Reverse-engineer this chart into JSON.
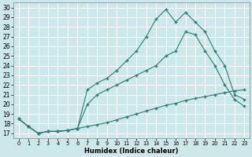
{
  "xlabel": "Humidex (Indice chaleur)",
  "bg_color": "#cce8ea",
  "grid_color": "#ffffff",
  "line_color": "#2e7d72",
  "xlim": [
    -0.5,
    23.5
  ],
  "ylim": [
    16.5,
    30.5
  ],
  "xticks": [
    0,
    1,
    2,
    3,
    4,
    5,
    6,
    7,
    8,
    9,
    10,
    11,
    12,
    13,
    14,
    15,
    16,
    17,
    18,
    19,
    20,
    21,
    22,
    23
  ],
  "yticks": [
    17,
    18,
    19,
    20,
    21,
    22,
    23,
    24,
    25,
    26,
    27,
    28,
    29,
    30
  ],
  "line1_x": [
    0,
    1,
    2,
    3,
    4,
    5,
    6,
    7,
    8,
    9,
    10,
    11,
    12,
    13,
    14,
    15,
    16,
    17,
    18,
    19,
    20,
    21,
    22,
    23
  ],
  "line1_y": [
    18.5,
    17.7,
    17.0,
    17.2,
    17.2,
    17.3,
    17.5,
    17.7,
    17.9,
    18.1,
    18.4,
    18.7,
    19.0,
    19.3,
    19.6,
    19.9,
    20.1,
    20.4,
    20.6,
    20.8,
    21.0,
    21.2,
    21.4,
    21.5
  ],
  "line2_x": [
    0,
    1,
    2,
    3,
    4,
    5,
    6,
    7,
    8,
    9,
    10,
    11,
    12,
    13,
    14,
    15,
    16,
    17,
    18,
    19,
    20,
    21,
    22,
    23
  ],
  "line2_y": [
    18.5,
    17.7,
    17.0,
    17.2,
    17.2,
    17.3,
    17.5,
    20.0,
    21.0,
    21.5,
    22.0,
    22.5,
    23.0,
    23.5,
    24.0,
    25.0,
    25.5,
    27.5,
    27.2,
    25.5,
    24.0,
    22.0,
    20.5,
    19.8
  ],
  "line3_x": [
    0,
    1,
    2,
    3,
    4,
    5,
    6,
    7,
    8,
    9,
    10,
    11,
    12,
    13,
    14,
    15,
    16,
    17,
    18,
    19,
    20,
    21,
    22,
    23
  ],
  "line3_y": [
    18.5,
    17.7,
    17.0,
    17.2,
    17.2,
    17.3,
    17.5,
    21.5,
    22.2,
    22.7,
    23.5,
    24.5,
    25.5,
    27.0,
    28.8,
    29.8,
    28.5,
    29.5,
    28.5,
    27.5,
    25.5,
    24.0,
    21.0,
    20.5
  ]
}
